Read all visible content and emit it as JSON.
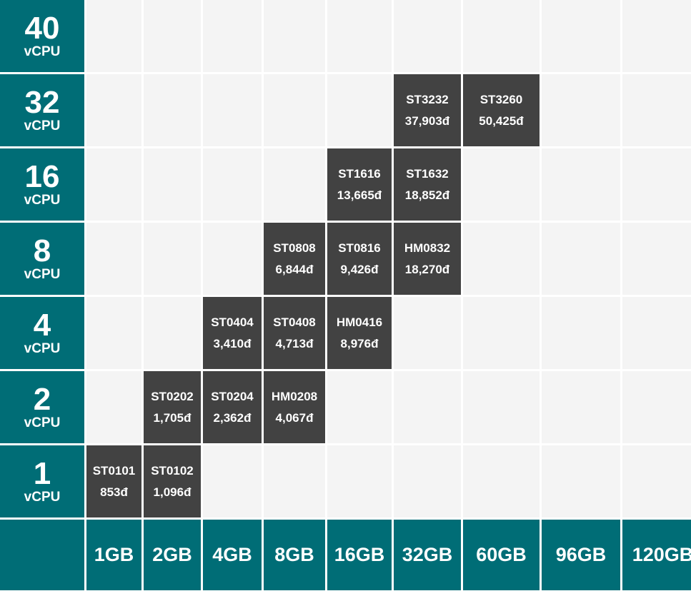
{
  "colors": {
    "label_bg": "#006d76",
    "plan_bg": "#424242",
    "empty_cell": "#f4f4f4",
    "text": "#ffffff"
  },
  "cpu_rows": [
    {
      "num": "40",
      "unit": "vCPU"
    },
    {
      "num": "32",
      "unit": "vCPU"
    },
    {
      "num": "16",
      "unit": "vCPU"
    },
    {
      "num": "8",
      "unit": "vCPU"
    },
    {
      "num": "4",
      "unit": "vCPU"
    },
    {
      "num": "2",
      "unit": "vCPU"
    },
    {
      "num": "1",
      "unit": "vCPU"
    }
  ],
  "ram_columns": [
    "1GB",
    "2GB",
    "4GB",
    "8GB",
    "16GB",
    "32GB",
    "60GB",
    "96GB",
    "120GB"
  ],
  "plans": [
    {
      "cpu": "32",
      "ram": "32GB",
      "code": "ST3232",
      "price": "37,903đ"
    },
    {
      "cpu": "32",
      "ram": "60GB",
      "code": "ST3260",
      "price": "50,425đ"
    },
    {
      "cpu": "16",
      "ram": "16GB",
      "code": "ST1616",
      "price": "13,665đ"
    },
    {
      "cpu": "16",
      "ram": "32GB",
      "code": "ST1632",
      "price": "18,852đ"
    },
    {
      "cpu": "8",
      "ram": "8GB",
      "code": "ST0808",
      "price": "6,844đ"
    },
    {
      "cpu": "8",
      "ram": "16GB",
      "code": "ST0816",
      "price": "9,426đ"
    },
    {
      "cpu": "8",
      "ram": "32GB",
      "code": "HM0832",
      "price": "18,270đ"
    },
    {
      "cpu": "4",
      "ram": "4GB",
      "code": "ST0404",
      "price": "3,410đ"
    },
    {
      "cpu": "4",
      "ram": "8GB",
      "code": "ST0408",
      "price": "4,713đ"
    },
    {
      "cpu": "4",
      "ram": "16GB",
      "code": "HM0416",
      "price": "8,976đ"
    },
    {
      "cpu": "2",
      "ram": "2GB",
      "code": "ST0202",
      "price": "1,705đ"
    },
    {
      "cpu": "2",
      "ram": "4GB",
      "code": "ST0204",
      "price": "2,362đ"
    },
    {
      "cpu": "2",
      "ram": "8GB",
      "code": "HM0208",
      "price": "4,067đ"
    },
    {
      "cpu": "1",
      "ram": "1GB",
      "code": "ST0101",
      "price": "853đ"
    },
    {
      "cpu": "1",
      "ram": "2GB",
      "code": "ST0102",
      "price": "1,096đ"
    }
  ]
}
